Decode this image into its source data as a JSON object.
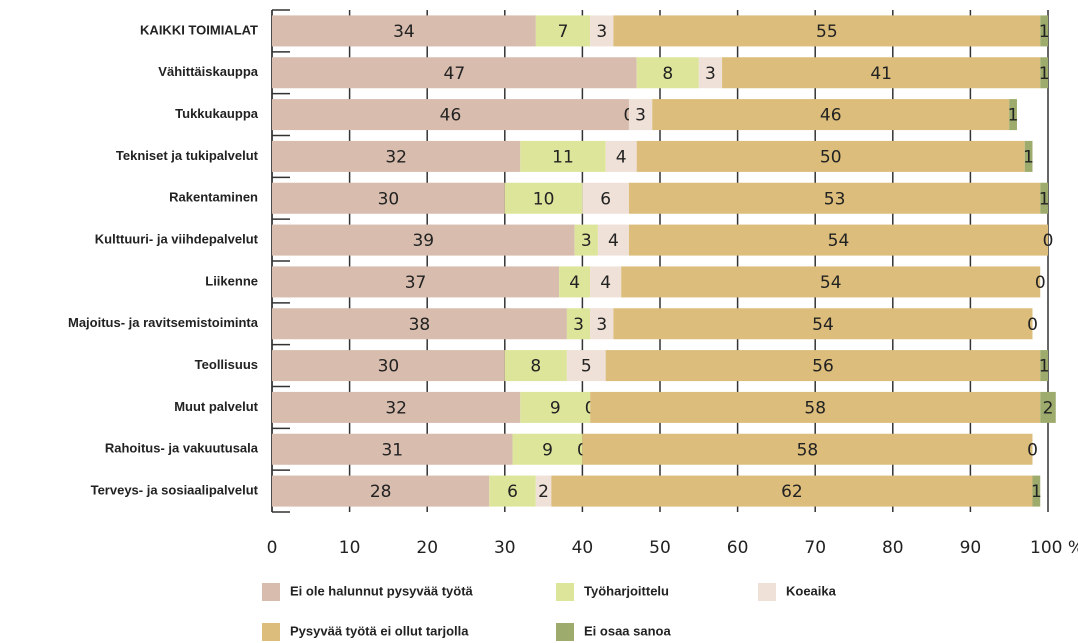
{
  "chart_data": {
    "type": "stacked_barh",
    "categories": [
      "KAIKKI TOIMIALAT",
      "Vähittäiskauppa",
      "Tukkukauppa",
      "Tekniset ja tukipalvelut",
      "Rakentaminen",
      "Kulttuuri- ja viihdepalvelut",
      "Liikenne",
      "Majoitus- ja ravitsemistoiminta",
      "Teollisuus",
      "Muut palvelut",
      "Rahoitus- ja vakuutusala",
      "Terveys- ja sosiaalipalvelut"
    ],
    "series": [
      {
        "name": "Ei ole halunnut pysyvää työtä",
        "color": "#d8bcad",
        "values": [
          34,
          47,
          46,
          32,
          30,
          39,
          37,
          38,
          30,
          32,
          31,
          28
        ]
      },
      {
        "name": "Työharjoittelu",
        "color": "#dde59b",
        "values": [
          7,
          8,
          0,
          11,
          10,
          3,
          4,
          3,
          8,
          9,
          9,
          6
        ]
      },
      {
        "name": "Koeaika",
        "color": "#efe1d7",
        "values": [
          3,
          3,
          3,
          4,
          6,
          4,
          4,
          3,
          5,
          0,
          0,
          2
        ]
      },
      {
        "name": "Pysyvää työtä ei ollut tarjolla",
        "color": "#dcbd7b",
        "values": [
          55,
          41,
          46,
          50,
          53,
          54,
          54,
          54,
          56,
          58,
          58,
          62
        ]
      },
      {
        "name": "Ei osaa sanoa",
        "color": "#9dab6d",
        "values": [
          1,
          1,
          1,
          1,
          1,
          0,
          0,
          0,
          1,
          2,
          0,
          1
        ]
      }
    ],
    "xlim": [
      0,
      100
    ],
    "xticks": [
      0,
      10,
      20,
      30,
      40,
      50,
      60,
      70,
      80,
      90,
      {
        "value": 100,
        "label": "100 %"
      }
    ]
  }
}
